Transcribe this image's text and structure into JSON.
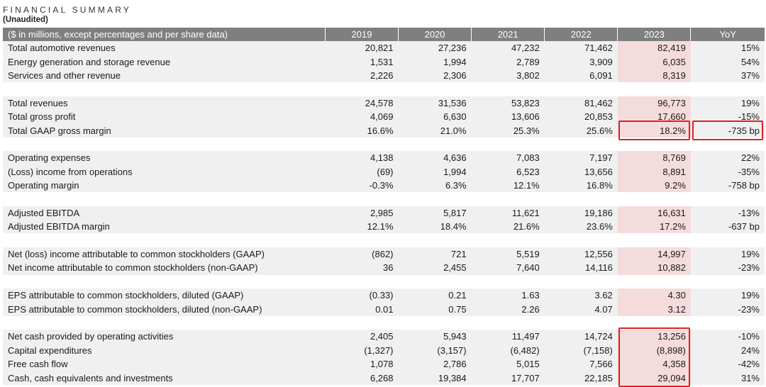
{
  "header": {
    "title": "FINANCIAL SUMMARY",
    "subtitle": "(Unaudited)"
  },
  "table": {
    "columns": [
      "($ in millions, except percentages and per share data)",
      "2019",
      "2020",
      "2021",
      "2022",
      "2023",
      "YoY"
    ],
    "groups": [
      [
        [
          "Total automotive revenues",
          "20,821",
          "27,236",
          "47,232",
          "71,462",
          "82,419",
          "15%"
        ],
        [
          "Energy generation and storage revenue",
          "1,531",
          "1,994",
          "2,789",
          "3,909",
          "6,035",
          "54%"
        ],
        [
          "Services and other revenue",
          "2,226",
          "2,306",
          "3,802",
          "6,091",
          "8,319",
          "37%"
        ]
      ],
      [
        [
          "Total revenues",
          "24,578",
          "31,536",
          "53,823",
          "81,462",
          "96,773",
          "19%"
        ],
        [
          "Total gross profit",
          "4,069",
          "6,630",
          "13,606",
          "20,853",
          "17,660",
          "-15%"
        ],
        [
          "Total GAAP gross margin",
          "16.6%",
          "21.0%",
          "25.3%",
          "25.6%",
          "18.2%",
          "-735 bp"
        ]
      ],
      [
        [
          "Operating expenses",
          "4,138",
          "4,636",
          "7,083",
          "7,197",
          "8,769",
          "22%"
        ],
        [
          "(Loss) income from operations",
          "(69)",
          "1,994",
          "6,523",
          "13,656",
          "8,891",
          "-35%"
        ],
        [
          "Operating margin",
          "-0.3%",
          "6.3%",
          "12.1%",
          "16.8%",
          "9.2%",
          "-758 bp"
        ]
      ],
      [
        [
          "Adjusted EBITDA",
          "2,985",
          "5,817",
          "11,621",
          "19,186",
          "16,631",
          "-13%"
        ],
        [
          "Adjusted EBITDA margin",
          "12.1%",
          "18.4%",
          "21.6%",
          "23.6%",
          "17.2%",
          "-637 bp"
        ]
      ],
      [
        [
          "Net (loss) income attributable to common stockholders (GAAP)",
          "(862)",
          "721",
          "5,519",
          "12,556",
          "14,997",
          "19%"
        ],
        [
          "Net income attributable to common stockholders (non-GAAP)",
          "36",
          "2,455",
          "7,640",
          "14,116",
          "10,882",
          "-23%"
        ]
      ],
      [
        [
          "EPS attributable to common stockholders, diluted (GAAP)",
          "(0.33)",
          "0.21",
          "1.63",
          "3.62",
          "4.30",
          "19%"
        ],
        [
          "EPS attributable to common stockholders, diluted (non-GAAP)",
          "0.01",
          "0.75",
          "2.26",
          "4.07",
          "3.12",
          "-23%"
        ]
      ],
      [
        [
          "Net cash provided by operating activities",
          "2,405",
          "5,943",
          "11,497",
          "14,724",
          "13,256",
          "-10%"
        ],
        [
          "Capital expenditures",
          "(1,327)",
          "(3,157)",
          "(6,482)",
          "(7,158)",
          "(8,898)",
          "24%"
        ],
        [
          "Free cash flow",
          "1,078",
          "2,786",
          "5,015",
          "7,566",
          "4,358",
          "-42%"
        ],
        [
          "Cash, cash equivalents and investments",
          "6,268",
          "19,384",
          "17,707",
          "22,185",
          "29,094",
          "31%"
        ]
      ]
    ]
  },
  "colors": {
    "header_bg": "#7f7f7f",
    "row_shade": "#f0f0f0",
    "highlight_2023": "#f5dcdc",
    "callout_red": "#e02020"
  }
}
